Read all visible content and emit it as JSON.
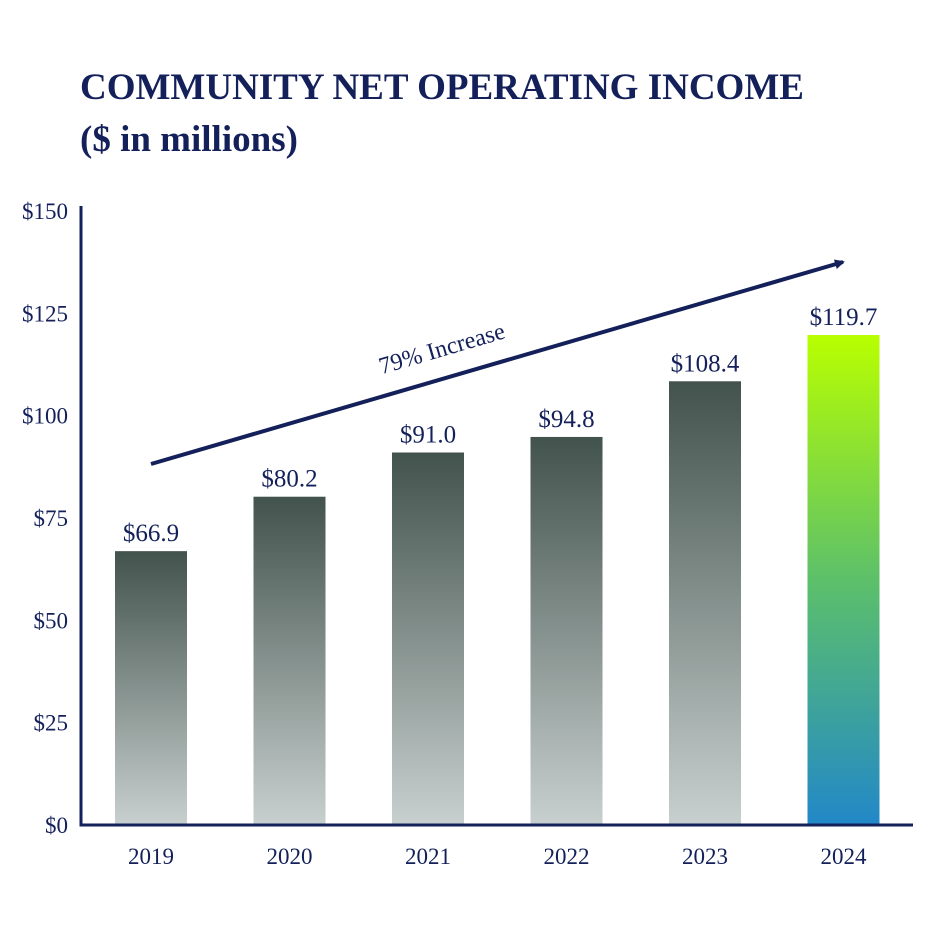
{
  "chart_data": {
    "type": "bar",
    "title": "COMMUNITY NET OPERATING INCOME",
    "subtitle": "($ in millions)",
    "categories": [
      "2019",
      "2020",
      "2021",
      "2022",
      "2023",
      "2024"
    ],
    "values": [
      66.9,
      80.2,
      91.0,
      94.8,
      108.4,
      119.7
    ],
    "value_labels": [
      "$66.9",
      "$80.2",
      "$91.0",
      "$94.8",
      "$108.4",
      "$119.7"
    ],
    "ylim": [
      0,
      150
    ],
    "yticks": [
      0,
      25,
      50,
      75,
      100,
      125,
      150
    ],
    "ytick_labels": [
      "$0",
      "$25",
      "$50",
      "$75",
      "$100",
      "$125",
      "$150"
    ],
    "xlabel": "",
    "ylabel": "",
    "grid": false,
    "annotation": "79% Increase",
    "colors": {
      "axis": "#13205a",
      "bar_top": "#42524c",
      "bar_bottom": "#c8d0cf",
      "highlight_top": "#b8ff00",
      "highlight_mid": "#5cc06a",
      "highlight_bottom": "#2288c8"
    }
  }
}
